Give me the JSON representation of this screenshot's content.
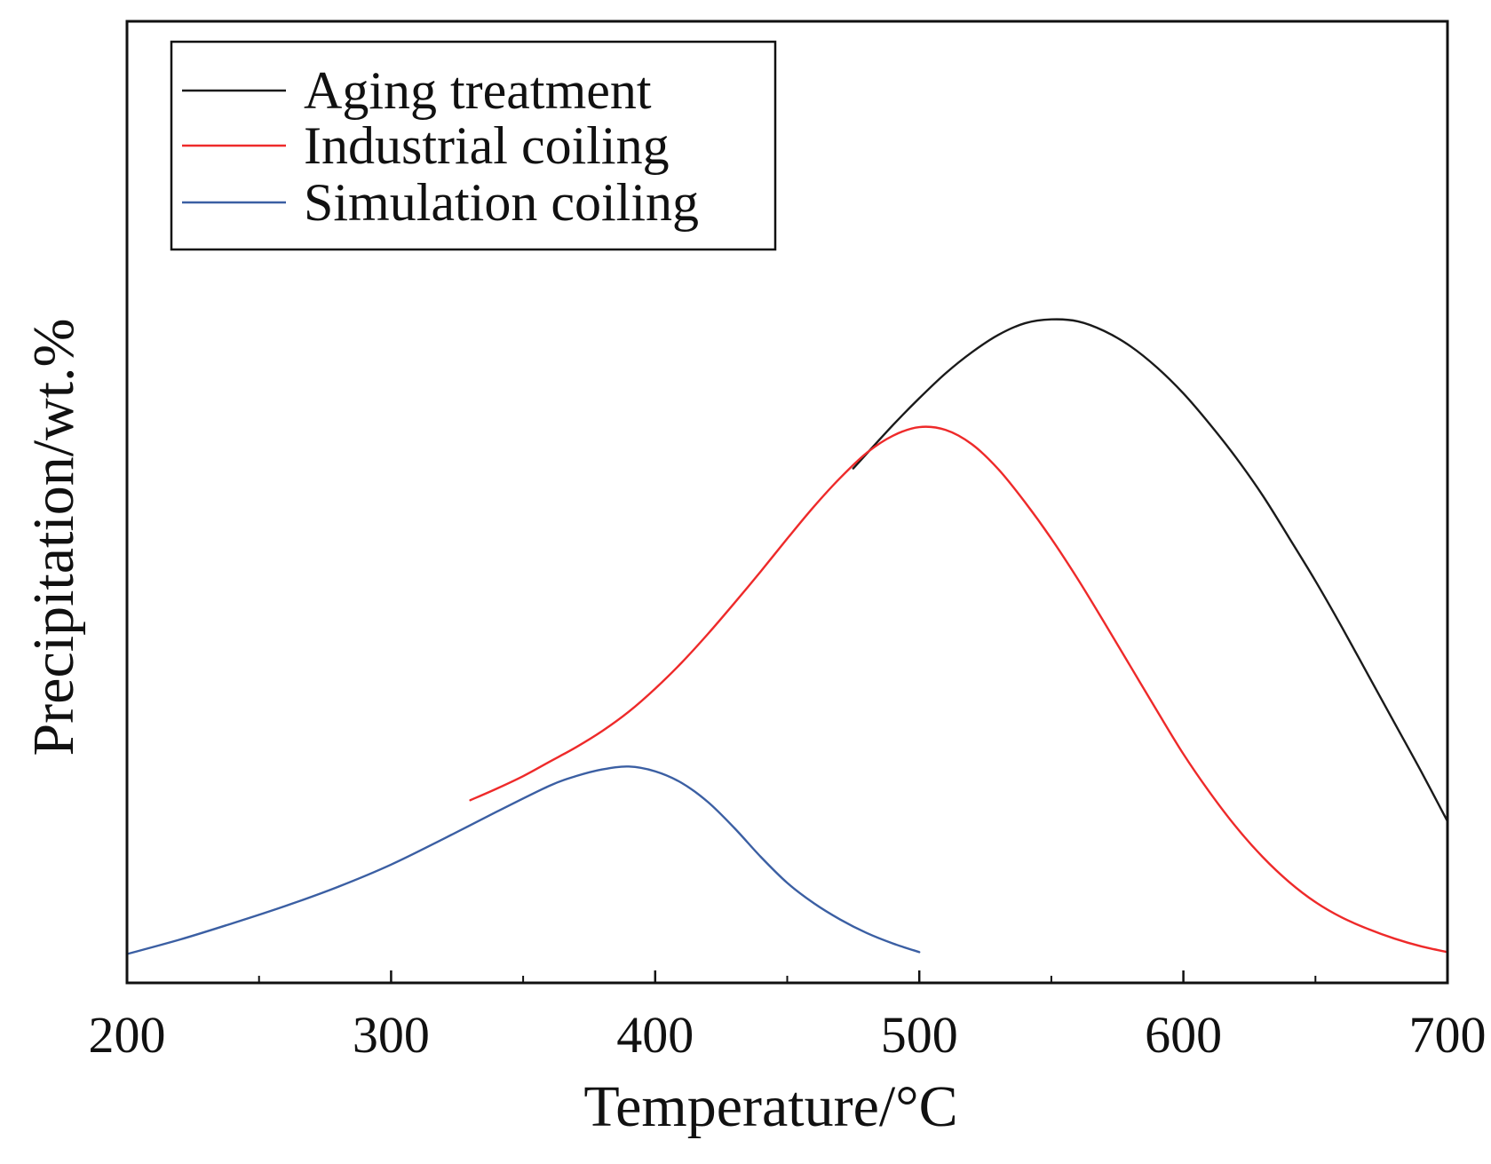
{
  "chart_data": {
    "type": "line",
    "title": "",
    "xlabel": "Temperature/°C",
    "ylabel": "Precipitation/wt.%",
    "xlim": [
      200,
      700
    ],
    "ylim": [
      0,
      1
    ],
    "y_tick_labels_shown": false,
    "grid": false,
    "legend_position": "top-left",
    "x_ticks": [
      {
        "value": 200,
        "label": "200"
      },
      {
        "value": 300,
        "label": "300"
      },
      {
        "value": 400,
        "label": "400"
      },
      {
        "value": 500,
        "label": "500"
      },
      {
        "value": 600,
        "label": "600"
      },
      {
        "value": 700,
        "label": "700"
      }
    ],
    "x_minor_ticks": [
      250,
      350,
      450,
      550,
      650
    ],
    "series": [
      {
        "name": "Aging treatment",
        "color": "#1a1a1a",
        "x": [
          475,
          490,
          500,
          510,
          520,
          530,
          540,
          550,
          560,
          570,
          580,
          590,
          600,
          610,
          620,
          630,
          640,
          650,
          660,
          670,
          680,
          690,
          700
        ],
        "y": [
          0.535,
          0.58,
          0.608,
          0.634,
          0.656,
          0.674,
          0.686,
          0.69,
          0.688,
          0.678,
          0.662,
          0.64,
          0.613,
          0.581,
          0.546,
          0.507,
          0.463,
          0.418,
          0.37,
          0.32,
          0.27,
          0.22,
          0.168
        ]
      },
      {
        "name": "Industrial coiling",
        "color": "#ee2a2a",
        "x": [
          330,
          340,
          350,
          360,
          370,
          380,
          390,
          400,
          410,
          420,
          430,
          440,
          450,
          460,
          470,
          480,
          490,
          500,
          510,
          520,
          530,
          540,
          550,
          560,
          570,
          580,
          590,
          600,
          610,
          620,
          630,
          640,
          650,
          660,
          670,
          680,
          690,
          700
        ],
        "y": [
          0.19,
          0.202,
          0.215,
          0.23,
          0.245,
          0.262,
          0.282,
          0.306,
          0.333,
          0.363,
          0.395,
          0.428,
          0.462,
          0.495,
          0.525,
          0.551,
          0.569,
          0.578,
          0.575,
          0.56,
          0.534,
          0.5,
          0.462,
          0.42,
          0.375,
          0.329,
          0.283,
          0.238,
          0.198,
          0.162,
          0.131,
          0.105,
          0.084,
          0.068,
          0.056,
          0.046,
          0.038,
          0.032
        ]
      },
      {
        "name": "Simulation coiling",
        "color": "#3b5fa3",
        "x": [
          200,
          220,
          240,
          260,
          280,
          300,
          320,
          340,
          360,
          370,
          380,
          390,
          400,
          410,
          420,
          430,
          440,
          450,
          460,
          470,
          480,
          490,
          500
        ],
        "y": [
          0.03,
          0.045,
          0.062,
          0.08,
          0.1,
          0.123,
          0.15,
          0.178,
          0.205,
          0.215,
          0.222,
          0.225,
          0.22,
          0.208,
          0.188,
          0.161,
          0.131,
          0.104,
          0.083,
          0.066,
          0.052,
          0.041,
          0.032
        ]
      }
    ]
  }
}
